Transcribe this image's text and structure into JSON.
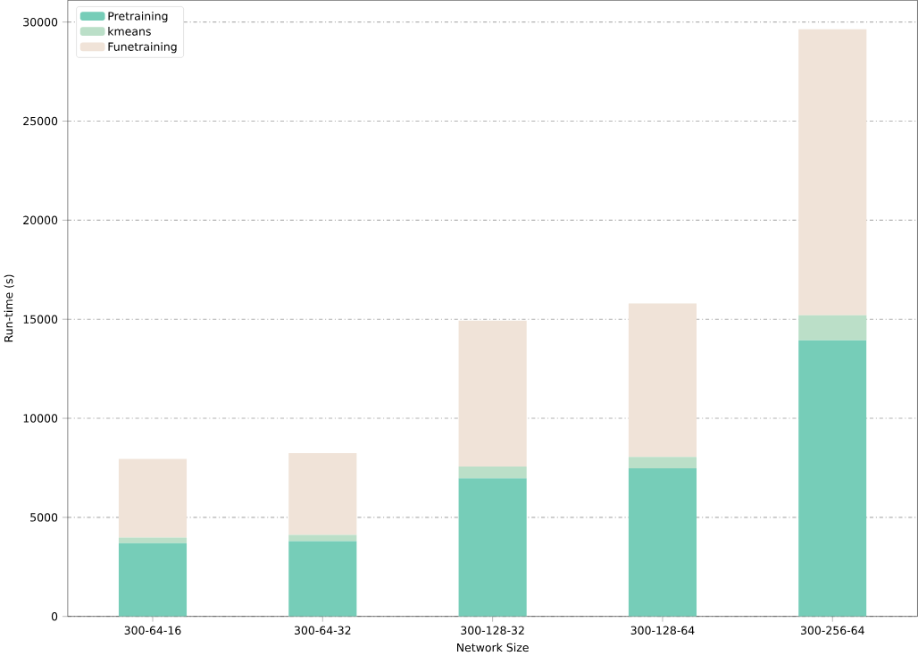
{
  "chart_data": {
    "type": "bar",
    "stacked": true,
    "xlabel": "Network Size",
    "ylabel": "Run-time (s)",
    "categories": [
      "300-64-16",
      "300-64-32",
      "300-128-32",
      "300-128-64",
      "300-256-64"
    ],
    "series": [
      {
        "name": "Pretraining",
        "color": "#76cdb8",
        "values": [
          3700,
          3800,
          6970,
          7470,
          13940
        ]
      },
      {
        "name": "kmeans",
        "color": "#bbdfc8",
        "values": [
          280,
          320,
          590,
          580,
          1260
        ]
      },
      {
        "name": "Funetraining",
        "color": "#f0e3d8",
        "values": [
          3970,
          4120,
          7370,
          7750,
          14440
        ]
      }
    ],
    "ylim": [
      0,
      31100
    ],
    "yticks": [
      0,
      5000,
      10000,
      15000,
      20000,
      25000,
      30000
    ],
    "grid": "y",
    "line_style": "dashdot",
    "legend": "top left"
  }
}
